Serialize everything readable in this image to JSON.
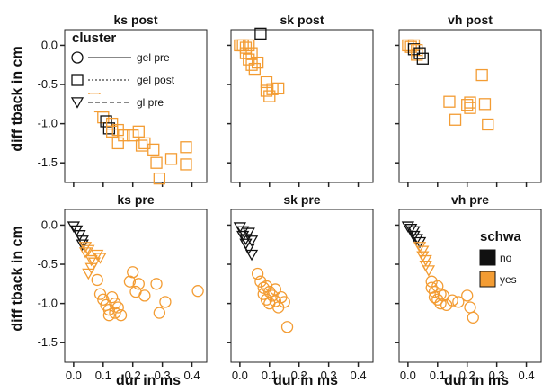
{
  "chart_data": {
    "type": "scatter",
    "xlabel": "dur in ms",
    "ylabel": "diff tback in cm",
    "xlim": [
      -0.03,
      0.45
    ],
    "ylim": [
      -1.75,
      0.2
    ],
    "xticks": [
      "0.0",
      "0.1",
      "0.2",
      "0.3",
      "0.4"
    ],
    "xtick_values": [
      0.0,
      0.1,
      0.2,
      0.3,
      0.4
    ],
    "yticks": [
      "0.0",
      "-0.5",
      "-1.0",
      "-1.5"
    ],
    "ytick_values": [
      0.0,
      -0.5,
      -1.0,
      -1.5
    ],
    "colors": {
      "no": "#111111",
      "yes": "#f39c33"
    },
    "legend_cluster": {
      "title": "cluster",
      "placement": "top-left of first panel",
      "items": [
        {
          "label": "gel pre",
          "shape": "circle",
          "line": "solid"
        },
        {
          "label": "gel post",
          "shape": "square",
          "line": "dotted"
        },
        {
          "label": "gl pre",
          "shape": "triangle",
          "line": "dashed"
        }
      ]
    },
    "legend_schwa": {
      "title": "schwa",
      "placement": "right of last panel",
      "items": [
        {
          "label": "no",
          "color": "#111111"
        },
        {
          "label": "yes",
          "color": "#f39c33"
        }
      ]
    },
    "panels": [
      {
        "title": "ks post",
        "points": [
          {
            "x": 0.07,
            "y": -0.68,
            "shape": "square",
            "schwa": "yes"
          },
          {
            "x": 0.09,
            "y": -0.78,
            "shape": "square",
            "schwa": "yes"
          },
          {
            "x": 0.1,
            "y": -0.92,
            "shape": "square",
            "schwa": "yes"
          },
          {
            "x": 0.11,
            "y": -0.97,
            "shape": "square",
            "schwa": "no"
          },
          {
            "x": 0.12,
            "y": -1.06,
            "shape": "square",
            "schwa": "no"
          },
          {
            "x": 0.13,
            "y": -1.1,
            "shape": "square",
            "schwa": "yes"
          },
          {
            "x": 0.15,
            "y": -1.25,
            "shape": "square",
            "schwa": "yes"
          },
          {
            "x": 0.13,
            "y": -1.0,
            "shape": "square",
            "schwa": "yes"
          },
          {
            "x": 0.15,
            "y": -1.08,
            "shape": "square",
            "schwa": "yes"
          },
          {
            "x": 0.17,
            "y": -1.15,
            "shape": "square",
            "schwa": "yes"
          },
          {
            "x": 0.2,
            "y": -1.15,
            "shape": "square",
            "schwa": "yes"
          },
          {
            "x": 0.22,
            "y": -1.1,
            "shape": "square",
            "schwa": "yes"
          },
          {
            "x": 0.23,
            "y": -1.28,
            "shape": "square",
            "schwa": "yes"
          },
          {
            "x": 0.24,
            "y": -1.25,
            "shape": "square",
            "schwa": "yes"
          },
          {
            "x": 0.27,
            "y": -1.33,
            "shape": "square",
            "schwa": "yes"
          },
          {
            "x": 0.28,
            "y": -1.5,
            "shape": "square",
            "schwa": "yes"
          },
          {
            "x": 0.29,
            "y": -1.7,
            "shape": "square",
            "schwa": "yes"
          },
          {
            "x": 0.33,
            "y": -1.45,
            "shape": "square",
            "schwa": "yes"
          },
          {
            "x": 0.38,
            "y": -1.3,
            "shape": "square",
            "schwa": "yes"
          },
          {
            "x": 0.38,
            "y": -1.52,
            "shape": "square",
            "schwa": "yes"
          }
        ]
      },
      {
        "title": "sk post",
        "points": [
          {
            "x": 0.0,
            "y": 0.0,
            "shape": "square",
            "schwa": "yes"
          },
          {
            "x": 0.01,
            "y": 0.0,
            "shape": "square",
            "schwa": "yes"
          },
          {
            "x": 0.02,
            "y": -0.03,
            "shape": "square",
            "schwa": "yes"
          },
          {
            "x": 0.02,
            "y": -0.1,
            "shape": "square",
            "schwa": "yes"
          },
          {
            "x": 0.03,
            "y": 0.0,
            "shape": "square",
            "schwa": "yes"
          },
          {
            "x": 0.03,
            "y": -0.18,
            "shape": "square",
            "schwa": "yes"
          },
          {
            "x": 0.04,
            "y": -0.1,
            "shape": "square",
            "schwa": "yes"
          },
          {
            "x": 0.04,
            "y": -0.25,
            "shape": "square",
            "schwa": "yes"
          },
          {
            "x": 0.05,
            "y": -0.3,
            "shape": "square",
            "schwa": "yes"
          },
          {
            "x": 0.06,
            "y": -0.22,
            "shape": "square",
            "schwa": "yes"
          },
          {
            "x": 0.07,
            "y": 0.15,
            "shape": "square",
            "schwa": "no"
          },
          {
            "x": 0.09,
            "y": -0.47,
            "shape": "square",
            "schwa": "yes"
          },
          {
            "x": 0.09,
            "y": -0.58,
            "shape": "square",
            "schwa": "yes"
          },
          {
            "x": 0.1,
            "y": -0.65,
            "shape": "square",
            "schwa": "yes"
          },
          {
            "x": 0.11,
            "y": -0.56,
            "shape": "square",
            "schwa": "yes"
          },
          {
            "x": 0.13,
            "y": -0.55,
            "shape": "square",
            "schwa": "yes"
          }
        ]
      },
      {
        "title": "vh post",
        "points": [
          {
            "x": 0.0,
            "y": 0.0,
            "shape": "square",
            "schwa": "yes"
          },
          {
            "x": 0.01,
            "y": -0.02,
            "shape": "square",
            "schwa": "yes"
          },
          {
            "x": 0.02,
            "y": 0.0,
            "shape": "square",
            "schwa": "yes"
          },
          {
            "x": 0.02,
            "y": -0.05,
            "shape": "square",
            "schwa": "no"
          },
          {
            "x": 0.03,
            "y": -0.06,
            "shape": "square",
            "schwa": "yes"
          },
          {
            "x": 0.03,
            "y": -0.12,
            "shape": "square",
            "schwa": "yes"
          },
          {
            "x": 0.04,
            "y": -0.1,
            "shape": "square",
            "schwa": "no"
          },
          {
            "x": 0.05,
            "y": -0.17,
            "shape": "square",
            "schwa": "no"
          },
          {
            "x": 0.14,
            "y": -0.72,
            "shape": "square",
            "schwa": "yes"
          },
          {
            "x": 0.16,
            "y": -0.95,
            "shape": "square",
            "schwa": "yes"
          },
          {
            "x": 0.2,
            "y": -0.76,
            "shape": "square",
            "schwa": "yes"
          },
          {
            "x": 0.21,
            "y": -0.8,
            "shape": "square",
            "schwa": "yes"
          },
          {
            "x": 0.21,
            "y": -0.73,
            "shape": "square",
            "schwa": "yes"
          },
          {
            "x": 0.25,
            "y": -0.38,
            "shape": "square",
            "schwa": "yes"
          },
          {
            "x": 0.26,
            "y": -0.75,
            "shape": "square",
            "schwa": "yes"
          },
          {
            "x": 0.27,
            "y": -1.01,
            "shape": "square",
            "schwa": "yes"
          }
        ]
      },
      {
        "title": "ks pre",
        "points": [
          {
            "x": 0.0,
            "y": -0.02,
            "shape": "triangle",
            "schwa": "no"
          },
          {
            "x": 0.01,
            "y": -0.07,
            "shape": "triangle",
            "schwa": "no"
          },
          {
            "x": 0.02,
            "y": -0.13,
            "shape": "triangle",
            "schwa": "no"
          },
          {
            "x": 0.03,
            "y": -0.2,
            "shape": "triangle",
            "schwa": "no"
          },
          {
            "x": 0.03,
            "y": -0.25,
            "shape": "triangle",
            "schwa": "no"
          },
          {
            "x": 0.04,
            "y": -0.28,
            "shape": "triangle",
            "schwa": "yes"
          },
          {
            "x": 0.04,
            "y": -0.35,
            "shape": "triangle",
            "schwa": "yes"
          },
          {
            "x": 0.05,
            "y": -0.32,
            "shape": "triangle",
            "schwa": "yes"
          },
          {
            "x": 0.06,
            "y": -0.45,
            "shape": "triangle",
            "schwa": "yes"
          },
          {
            "x": 0.06,
            "y": -0.55,
            "shape": "triangle",
            "schwa": "yes"
          },
          {
            "x": 0.07,
            "y": -0.48,
            "shape": "triangle",
            "schwa": "yes"
          },
          {
            "x": 0.05,
            "y": -0.62,
            "shape": "triangle",
            "schwa": "yes"
          },
          {
            "x": 0.08,
            "y": -0.38,
            "shape": "triangle",
            "schwa": "yes"
          },
          {
            "x": 0.09,
            "y": -0.42,
            "shape": "triangle",
            "schwa": "yes"
          },
          {
            "x": 0.08,
            "y": -0.7,
            "shape": "circle",
            "schwa": "yes"
          },
          {
            "x": 0.09,
            "y": -0.88,
            "shape": "circle",
            "schwa": "yes"
          },
          {
            "x": 0.1,
            "y": -0.95,
            "shape": "circle",
            "schwa": "yes"
          },
          {
            "x": 0.11,
            "y": -1.02,
            "shape": "circle",
            "schwa": "yes"
          },
          {
            "x": 0.12,
            "y": -1.08,
            "shape": "circle",
            "schwa": "yes"
          },
          {
            "x": 0.12,
            "y": -1.15,
            "shape": "circle",
            "schwa": "yes"
          },
          {
            "x": 0.13,
            "y": -0.92,
            "shape": "circle",
            "schwa": "yes"
          },
          {
            "x": 0.14,
            "y": -1.12,
            "shape": "circle",
            "schwa": "yes"
          },
          {
            "x": 0.14,
            "y": -1.0,
            "shape": "circle",
            "schwa": "yes"
          },
          {
            "x": 0.15,
            "y": -1.05,
            "shape": "circle",
            "schwa": "yes"
          },
          {
            "x": 0.16,
            "y": -1.15,
            "shape": "circle",
            "schwa": "yes"
          },
          {
            "x": 0.19,
            "y": -0.72,
            "shape": "circle",
            "schwa": "yes"
          },
          {
            "x": 0.2,
            "y": -0.6,
            "shape": "circle",
            "schwa": "yes"
          },
          {
            "x": 0.21,
            "y": -0.85,
            "shape": "circle",
            "schwa": "yes"
          },
          {
            "x": 0.22,
            "y": -0.75,
            "shape": "circle",
            "schwa": "yes"
          },
          {
            "x": 0.24,
            "y": -0.9,
            "shape": "circle",
            "schwa": "yes"
          },
          {
            "x": 0.28,
            "y": -0.75,
            "shape": "circle",
            "schwa": "yes"
          },
          {
            "x": 0.29,
            "y": -1.12,
            "shape": "circle",
            "schwa": "yes"
          },
          {
            "x": 0.31,
            "y": -0.98,
            "shape": "circle",
            "schwa": "yes"
          },
          {
            "x": 0.42,
            "y": -0.84,
            "shape": "circle",
            "schwa": "yes"
          }
        ]
      },
      {
        "title": "sk pre",
        "points": [
          {
            "x": 0.0,
            "y": -0.03,
            "shape": "triangle",
            "schwa": "no"
          },
          {
            "x": 0.01,
            "y": -0.08,
            "shape": "triangle",
            "schwa": "no"
          },
          {
            "x": 0.01,
            "y": -0.14,
            "shape": "triangle",
            "schwa": "no"
          },
          {
            "x": 0.02,
            "y": -0.18,
            "shape": "triangle",
            "schwa": "no"
          },
          {
            "x": 0.02,
            "y": -0.24,
            "shape": "triangle",
            "schwa": "no"
          },
          {
            "x": 0.03,
            "y": -0.1,
            "shape": "triangle",
            "schwa": "no"
          },
          {
            "x": 0.03,
            "y": -0.3,
            "shape": "triangle",
            "schwa": "no"
          },
          {
            "x": 0.04,
            "y": -0.2,
            "shape": "triangle",
            "schwa": "no"
          },
          {
            "x": 0.04,
            "y": -0.38,
            "shape": "triangle",
            "schwa": "no"
          },
          {
            "x": 0.06,
            "y": -0.62,
            "shape": "circle",
            "schwa": "yes"
          },
          {
            "x": 0.07,
            "y": -0.72,
            "shape": "circle",
            "schwa": "yes"
          },
          {
            "x": 0.08,
            "y": -0.8,
            "shape": "circle",
            "schwa": "yes"
          },
          {
            "x": 0.08,
            "y": -0.88,
            "shape": "circle",
            "schwa": "yes"
          },
          {
            "x": 0.09,
            "y": -0.78,
            "shape": "circle",
            "schwa": "yes"
          },
          {
            "x": 0.09,
            "y": -0.95,
            "shape": "circle",
            "schwa": "yes"
          },
          {
            "x": 0.1,
            "y": -0.85,
            "shape": "circle",
            "schwa": "yes"
          },
          {
            "x": 0.1,
            "y": -1.0,
            "shape": "circle",
            "schwa": "yes"
          },
          {
            "x": 0.11,
            "y": -0.9,
            "shape": "circle",
            "schwa": "yes"
          },
          {
            "x": 0.12,
            "y": -0.97,
            "shape": "circle",
            "schwa": "yes"
          },
          {
            "x": 0.12,
            "y": -0.82,
            "shape": "circle",
            "schwa": "yes"
          },
          {
            "x": 0.13,
            "y": -1.05,
            "shape": "circle",
            "schwa": "yes"
          },
          {
            "x": 0.14,
            "y": -0.92,
            "shape": "circle",
            "schwa": "yes"
          },
          {
            "x": 0.15,
            "y": -0.98,
            "shape": "circle",
            "schwa": "yes"
          },
          {
            "x": 0.16,
            "y": -1.3,
            "shape": "circle",
            "schwa": "yes"
          }
        ]
      },
      {
        "title": "vh pre",
        "points": [
          {
            "x": 0.0,
            "y": -0.02,
            "shape": "triangle",
            "schwa": "no"
          },
          {
            "x": 0.01,
            "y": -0.05,
            "shape": "triangle",
            "schwa": "no"
          },
          {
            "x": 0.02,
            "y": -0.08,
            "shape": "triangle",
            "schwa": "no"
          },
          {
            "x": 0.02,
            "y": -0.14,
            "shape": "triangle",
            "schwa": "no"
          },
          {
            "x": 0.03,
            "y": -0.18,
            "shape": "triangle",
            "schwa": "no"
          },
          {
            "x": 0.04,
            "y": -0.22,
            "shape": "triangle",
            "schwa": "no"
          },
          {
            "x": 0.04,
            "y": -0.28,
            "shape": "triangle",
            "schwa": "yes"
          },
          {
            "x": 0.05,
            "y": -0.33,
            "shape": "triangle",
            "schwa": "yes"
          },
          {
            "x": 0.05,
            "y": -0.4,
            "shape": "triangle",
            "schwa": "yes"
          },
          {
            "x": 0.06,
            "y": -0.45,
            "shape": "triangle",
            "schwa": "yes"
          },
          {
            "x": 0.06,
            "y": -0.52,
            "shape": "triangle",
            "schwa": "yes"
          },
          {
            "x": 0.07,
            "y": -0.58,
            "shape": "triangle",
            "schwa": "yes"
          },
          {
            "x": 0.08,
            "y": -0.72,
            "shape": "circle",
            "schwa": "yes"
          },
          {
            "x": 0.08,
            "y": -0.8,
            "shape": "circle",
            "schwa": "yes"
          },
          {
            "x": 0.09,
            "y": -0.85,
            "shape": "circle",
            "schwa": "yes"
          },
          {
            "x": 0.09,
            "y": -0.92,
            "shape": "circle",
            "schwa": "yes"
          },
          {
            "x": 0.1,
            "y": -0.78,
            "shape": "circle",
            "schwa": "yes"
          },
          {
            "x": 0.1,
            "y": -0.95,
            "shape": "circle",
            "schwa": "yes"
          },
          {
            "x": 0.11,
            "y": -0.88,
            "shape": "circle",
            "schwa": "yes"
          },
          {
            "x": 0.11,
            "y": -1.0,
            "shape": "circle",
            "schwa": "yes"
          },
          {
            "x": 0.12,
            "y": -0.9,
            "shape": "circle",
            "schwa": "yes"
          },
          {
            "x": 0.13,
            "y": -1.02,
            "shape": "circle",
            "schwa": "yes"
          },
          {
            "x": 0.15,
            "y": -0.96,
            "shape": "circle",
            "schwa": "yes"
          },
          {
            "x": 0.17,
            "y": -0.98,
            "shape": "circle",
            "schwa": "yes"
          },
          {
            "x": 0.2,
            "y": -0.9,
            "shape": "circle",
            "schwa": "yes"
          },
          {
            "x": 0.21,
            "y": -1.05,
            "shape": "circle",
            "schwa": "yes"
          },
          {
            "x": 0.22,
            "y": -1.18,
            "shape": "circle",
            "schwa": "yes"
          }
        ]
      }
    ]
  }
}
